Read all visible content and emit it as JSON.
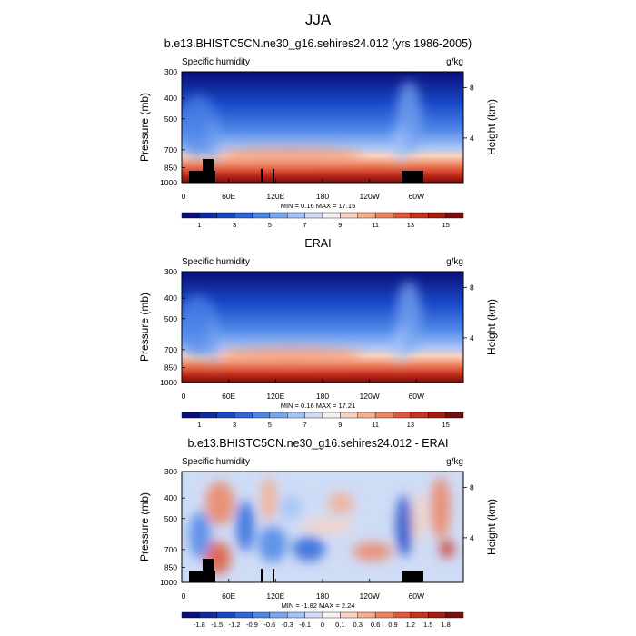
{
  "figure": {
    "title": "JJA"
  },
  "chart_data": [
    {
      "type": "heatmap",
      "title": "b.e13.BHISTC5CN.ne30_g16.sehires24.012 (yrs 1986-2005)",
      "left_label": "Specific humidity",
      "right_label": "g/kg",
      "xlabel": "",
      "ylabel": "Pressure (mb)",
      "ylabel_right": "Height (km)",
      "x_ticks": [
        "0",
        "60E",
        "120E",
        "180",
        "120W",
        "60W"
      ],
      "y_ticks": [
        300,
        400,
        500,
        700,
        850,
        1000
      ],
      "ylim": [
        1000,
        300
      ],
      "y_scale": "log",
      "right_ticks": [
        "8",
        "4"
      ],
      "min_max_text": "MIN =   0.16  MAX =   17.15",
      "min": 0.16,
      "max": 17.15,
      "colorbar_labels": [
        "1",
        "3",
        "5",
        "7",
        "9",
        "11",
        "13",
        "15"
      ],
      "colorbar_colors": [
        "#0a0f79",
        "#0d2ba3",
        "#1848c6",
        "#2e67db",
        "#4e86e8",
        "#7aa6f1",
        "#a5c3f7",
        "#cfdcf6",
        "#f2f2f2",
        "#f8d3c1",
        "#f6ae8e",
        "#ef8461",
        "#e0583a",
        "#c93320",
        "#a81a12",
        "#7a0c0b"
      ],
      "terrain": "black"
    },
    {
      "type": "heatmap",
      "title": "ERAI",
      "left_label": "Specific humidity",
      "right_label": "g/kg",
      "xlabel": "",
      "ylabel": "Pressure (mb)",
      "ylabel_right": "Height (km)",
      "x_ticks": [
        "0",
        "60E",
        "120E",
        "180",
        "120W",
        "60W"
      ],
      "y_ticks": [
        300,
        400,
        500,
        700,
        850,
        1000
      ],
      "ylim": [
        1000,
        300
      ],
      "y_scale": "log",
      "right_ticks": [
        "8",
        "4"
      ],
      "min_max_text": "MIN =   0.16  MAX =   17.21",
      "min": 0.16,
      "max": 17.21,
      "colorbar_labels": [
        "1",
        "3",
        "5",
        "7",
        "9",
        "11",
        "13",
        "15"
      ],
      "colorbar_colors": [
        "#0a0f79",
        "#0d2ba3",
        "#1848c6",
        "#2e67db",
        "#4e86e8",
        "#7aa6f1",
        "#a5c3f7",
        "#cfdcf6",
        "#f2f2f2",
        "#f8d3c1",
        "#f6ae8e",
        "#ef8461",
        "#e0583a",
        "#c93320",
        "#a81a12",
        "#7a0c0b"
      ],
      "terrain": "none"
    },
    {
      "type": "heatmap",
      "title": "b.e13.BHISTC5CN.ne30_g16.sehires24.012 - ERAI",
      "left_label": "Specific humidity",
      "right_label": "g/kg",
      "xlabel": "",
      "ylabel": "Pressure (mb)",
      "ylabel_right": "Height (km)",
      "x_ticks": [
        "0",
        "60E",
        "120E",
        "180",
        "120W",
        "60W"
      ],
      "y_ticks": [
        300,
        400,
        500,
        700,
        850,
        1000
      ],
      "ylim": [
        1000,
        300
      ],
      "y_scale": "log",
      "right_ticks": [
        "8",
        "4"
      ],
      "min_max_text": "MIN =  -1.82  MAX =   2.24",
      "min": -1.82,
      "max": 2.24,
      "colorbar_labels": [
        "-1.8",
        "-1.5",
        "-1.2",
        "-0.9",
        "-0.6",
        "-0.3",
        "-0.1",
        "0",
        "0.1",
        "0.3",
        "0.6",
        "0.9",
        "1.2",
        "1.5",
        "1.8"
      ],
      "colorbar_colors": [
        "#0a0f79",
        "#0d2ba3",
        "#1848c6",
        "#2e67db",
        "#4e86e8",
        "#7aa6f1",
        "#a5c3f7",
        "#cfdcf6",
        "#f2f2f2",
        "#f8d3c1",
        "#f6ae8e",
        "#ef8461",
        "#e0583a",
        "#c93320",
        "#a81a12",
        "#7a0c0b"
      ],
      "terrain": "black"
    }
  ]
}
